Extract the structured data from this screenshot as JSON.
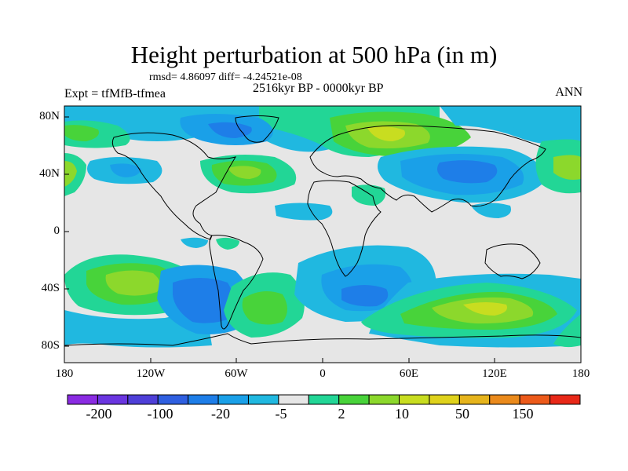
{
  "title": "Height perturbation at 500 hPa (in m)",
  "stats": "rmsd= 4.86097 diff= -4.24521e-08",
  "experiment": "Expt = tfMfB-tfmea",
  "period": "2516kyr BP - 0000kyr BP",
  "season": "ANN",
  "map": {
    "projection": "cylindrical-equidistant",
    "lon_range": [
      -180,
      180
    ],
    "lat_range": [
      -90,
      90
    ],
    "x_tick_labels": [
      "180",
      "120W",
      "60W",
      "0",
      "60E",
      "120E",
      "180"
    ],
    "y_tick_labels": [
      "80N",
      "40N",
      "0",
      "40S",
      "80S"
    ]
  },
  "colorbar": {
    "labels": [
      "-200",
      "-100",
      "-20",
      "-5",
      "2",
      "10",
      "50",
      "150"
    ],
    "colors": [
      "#8a2be2",
      "#6a35e0",
      "#4e3fd8",
      "#2f5fe0",
      "#1e7ee8",
      "#1aa0e8",
      "#20b8e0",
      "#e6e6e6",
      "#22d696",
      "#48d33a",
      "#8cd82c",
      "#c8dd20",
      "#dfd21c",
      "#e6b41c",
      "#ea8a1c",
      "#ec5a1a",
      "#e82818"
    ]
  },
  "colors": {
    "neutral": "#e6e6e6",
    "blue_light": "#20b8e0",
    "blue_mid": "#1aa0e8",
    "blue_dark": "#1e7ee8",
    "green": "#22d696",
    "green_mid": "#48d33a",
    "yellow_green": "#8cd82c",
    "yellow": "#c8dd20"
  }
}
